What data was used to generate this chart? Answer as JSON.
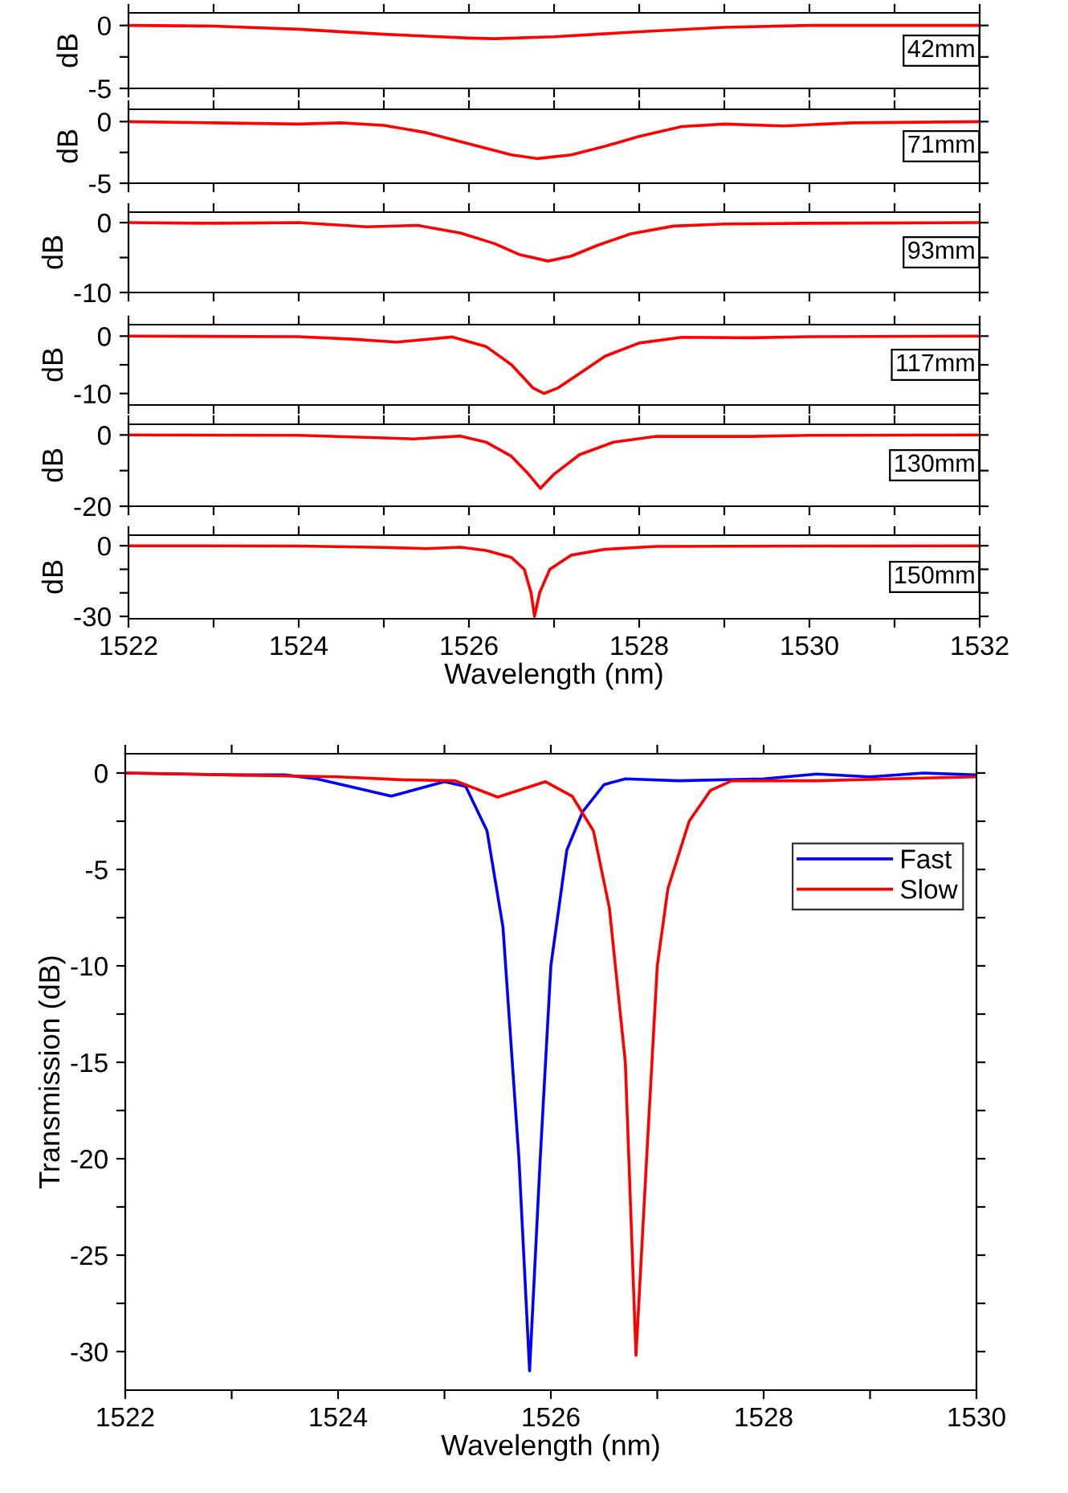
{
  "chart_data": [
    {
      "type": "line",
      "ylabel": "dB",
      "annotations": [
        "42mm"
      ],
      "xlim": [
        1522,
        1532
      ],
      "ylim": [
        -5,
        1
      ],
      "tick_labels": "y",
      "legend": false,
      "xticks": [
        1522,
        {
          "value": 1523,
          "label": null
        },
        1524,
        {
          "value": 1525,
          "label": null
        },
        1526,
        {
          "value": 1527,
          "label": null
        },
        1528,
        {
          "value": 1529,
          "label": null
        },
        1530,
        {
          "value": 1531,
          "label": null
        },
        1532
      ],
      "yticks": [
        0,
        {
          "value": -2.5,
          "label": null
        },
        -5
      ],
      "series": [
        {
          "color": "#ff0000",
          "x": [
            1522,
            1523,
            1524,
            1525,
            1526,
            1526.3,
            1527,
            1528,
            1529,
            1530,
            1531,
            1532
          ],
          "values": [
            0,
            -0.05,
            -0.3,
            -0.7,
            -1.0,
            -1.05,
            -0.9,
            -0.5,
            -0.15,
            0,
            0,
            0
          ]
        }
      ]
    },
    {
      "type": "line",
      "ylabel": "dB",
      "annotations": [
        "71mm"
      ],
      "xlim": [
        1522,
        1532
      ],
      "ylim": [
        -5,
        1
      ],
      "tick_labels": "y",
      "legend": false,
      "xticks": [
        1522,
        {
          "value": 1523,
          "label": null
        },
        1524,
        {
          "value": 1525,
          "label": null
        },
        1526,
        {
          "value": 1527,
          "label": null
        },
        1528,
        {
          "value": 1529,
          "label": null
        },
        1530,
        {
          "value": 1531,
          "label": null
        },
        1532
      ],
      "yticks": [
        0,
        {
          "value": -2.5,
          "label": null
        },
        -5
      ],
      "series": [
        {
          "color": "#ff0000",
          "x": [
            1522,
            1523,
            1524,
            1524.5,
            1525,
            1525.5,
            1526,
            1526.5,
            1526.8,
            1527.2,
            1527.6,
            1528,
            1528.5,
            1529,
            1529.7,
            1530.5,
            1532
          ],
          "values": [
            0,
            -0.1,
            -0.2,
            -0.1,
            -0.3,
            -0.9,
            -1.8,
            -2.7,
            -3.0,
            -2.7,
            -2.0,
            -1.2,
            -0.4,
            -0.2,
            -0.35,
            -0.1,
            0
          ]
        }
      ]
    },
    {
      "type": "line",
      "ylabel": "dB",
      "annotations": [
        "93mm"
      ],
      "xlim": [
        1522,
        1532
      ],
      "ylim": [
        -10,
        1.5
      ],
      "tick_labels": "y",
      "legend": false,
      "xticks": [
        1522,
        {
          "value": 1523,
          "label": null
        },
        1524,
        {
          "value": 1525,
          "label": null
        },
        1526,
        {
          "value": 1527,
          "label": null
        },
        1528,
        {
          "value": 1529,
          "label": null
        },
        1530,
        {
          "value": 1531,
          "label": null
        },
        1532
      ],
      "yticks": [
        0,
        {
          "value": -5,
          "label": null
        },
        -10
      ],
      "series": [
        {
          "color": "#ff0000",
          "x": [
            1522,
            1523,
            1524,
            1524.8,
            1525.4,
            1525.9,
            1526.3,
            1526.6,
            1526.93,
            1527.2,
            1527.5,
            1527.9,
            1528.4,
            1529,
            1530,
            1532
          ],
          "values": [
            0,
            -0.1,
            0,
            -0.6,
            -0.4,
            -1.5,
            -3.0,
            -4.6,
            -5.5,
            -4.8,
            -3.3,
            -1.6,
            -0.5,
            -0.2,
            -0.1,
            0
          ]
        }
      ]
    },
    {
      "type": "line",
      "ylabel": "dB",
      "annotations": [
        "117mm"
      ],
      "xlim": [
        1522,
        1532
      ],
      "ylim": [
        -12,
        2
      ],
      "tick_labels": "y",
      "legend": false,
      "xticks": [
        1522,
        {
          "value": 1523,
          "label": null
        },
        1524,
        {
          "value": 1525,
          "label": null
        },
        1526,
        {
          "value": 1527,
          "label": null
        },
        1528,
        {
          "value": 1529,
          "label": null
        },
        1530,
        {
          "value": 1531,
          "label": null
        },
        1532
      ],
      "yticks": [
        0,
        {
          "value": -5,
          "label": null
        },
        -10
      ],
      "series": [
        {
          "color": "#ff0000",
          "x": [
            1522,
            1524,
            1524.6,
            1525.15,
            1525.8,
            1526.2,
            1526.5,
            1526.75,
            1526.88,
            1527.05,
            1527.3,
            1527.6,
            1528,
            1528.5,
            1529.3,
            1530,
            1532
          ],
          "values": [
            0,
            -0.1,
            -0.5,
            -1.05,
            -0.15,
            -1.8,
            -5,
            -9,
            -10,
            -9,
            -6.5,
            -3.5,
            -1.2,
            -0.2,
            -0.3,
            -0.1,
            0
          ]
        }
      ]
    },
    {
      "type": "line",
      "ylabel": "dB",
      "annotations": [
        "130mm"
      ],
      "xlim": [
        1522,
        1532
      ],
      "ylim": [
        -20,
        3
      ],
      "tick_labels": "y",
      "legend": false,
      "xticks": [
        1522,
        {
          "value": 1523,
          "label": null
        },
        1524,
        {
          "value": 1525,
          "label": null
        },
        1526,
        {
          "value": 1527,
          "label": null
        },
        1528,
        {
          "value": 1529,
          "label": null
        },
        1530,
        {
          "value": 1531,
          "label": null
        },
        1532
      ],
      "yticks": [
        0,
        {
          "value": -10,
          "label": null
        },
        -20
      ],
      "series": [
        {
          "color": "#ff0000",
          "x": [
            1522,
            1524,
            1524.7,
            1525.35,
            1525.9,
            1526.2,
            1526.5,
            1526.7,
            1526.84,
            1527.0,
            1527.3,
            1527.7,
            1528.2,
            1529.3,
            1530,
            1532
          ],
          "values": [
            0,
            -0.1,
            -0.6,
            -1.1,
            -0.3,
            -2,
            -6,
            -11,
            -15,
            -11,
            -5.5,
            -2,
            -0.4,
            -0.4,
            -0.1,
            0
          ]
        }
      ]
    },
    {
      "type": "line",
      "ylabel": "dB",
      "xlabel": "Wavelength (nm)",
      "annotations": [
        "150mm"
      ],
      "xlim": [
        1522,
        1532
      ],
      "ylim": [
        -31,
        4.5
      ],
      "legend": false,
      "xticks": [
        1522,
        {
          "value": 1523,
          "label": null
        },
        1524,
        {
          "value": 1525,
          "label": null
        },
        1526,
        {
          "value": 1527,
          "label": null
        },
        1528,
        {
          "value": 1529,
          "label": null
        },
        1530,
        {
          "value": 1531,
          "label": null
        },
        1532
      ],
      "yticks": [
        0,
        {
          "value": -10,
          "label": null
        },
        {
          "value": -20,
          "label": null
        },
        -30
      ],
      "series": [
        {
          "color": "#ff0000",
          "x": [
            1522,
            1524,
            1525,
            1525.5,
            1525.9,
            1526.2,
            1526.5,
            1526.65,
            1526.73,
            1526.77,
            1526.83,
            1526.95,
            1527.2,
            1527.6,
            1528.2,
            1530,
            1532
          ],
          "values": [
            0,
            -0.1,
            -0.7,
            -1.2,
            -0.6,
            -2,
            -5,
            -10,
            -20,
            -30,
            -20,
            -10,
            -4,
            -1.5,
            -0.3,
            -0.1,
            0
          ]
        }
      ]
    },
    {
      "type": "line",
      "xlabel": "Wavelength (nm)",
      "ylabel": "Transmission (dB)",
      "xlim": [
        1522,
        1530
      ],
      "ylim": [
        -32,
        1
      ],
      "legend": "top right",
      "xticks": [
        1522,
        {
          "value": 1523,
          "label": null
        },
        1524,
        {
          "value": 1525,
          "label": null
        },
        1526,
        {
          "value": 1527,
          "label": null
        },
        1528,
        {
          "value": 1529,
          "label": null
        },
        1530
      ],
      "yticks": [
        0,
        {
          "value": -2.5,
          "label": null
        },
        -5,
        {
          "value": -7.5,
          "label": null
        },
        -10,
        {
          "value": -12.5,
          "label": null
        },
        -15,
        {
          "value": -17.5,
          "label": null
        },
        -20,
        {
          "value": -22.5,
          "label": null
        },
        -25,
        {
          "value": -27.5,
          "label": null
        },
        -30
      ],
      "series": [
        {
          "name": "Fast",
          "color": "#0000ff",
          "x": [
            1522,
            1523,
            1523.5,
            1523.8,
            1524.5,
            1525,
            1525.2,
            1525.4,
            1525.55,
            1525.7,
            1525.8,
            1525.9,
            1526.0,
            1526.15,
            1526.3,
            1526.5,
            1526.7,
            1527.2,
            1528,
            1528.5,
            1529,
            1529.5,
            1530
          ],
          "values": [
            0,
            -0.1,
            -0.1,
            -0.3,
            -1.2,
            -0.45,
            -0.7,
            -3,
            -8,
            -20,
            -31,
            -20,
            -10,
            -4,
            -2,
            -0.6,
            -0.3,
            -0.4,
            -0.3,
            -0.05,
            -0.2,
            0,
            -0.1
          ]
        },
        {
          "name": "Slow",
          "color": "#ff0000",
          "x": [
            1522,
            1523,
            1524,
            1524.6,
            1525.1,
            1525.5,
            1525.95,
            1526.2,
            1526.4,
            1526.55,
            1526.7,
            1526.8,
            1526.9,
            1527.0,
            1527.1,
            1527.3,
            1527.5,
            1527.7,
            1528.5,
            1529.2,
            1530
          ],
          "values": [
            0,
            -0.1,
            -0.2,
            -0.35,
            -0.4,
            -1.25,
            -0.45,
            -1.2,
            -3,
            -7,
            -15,
            -30.2,
            -20,
            -10,
            -6,
            -2.5,
            -0.9,
            -0.4,
            -0.4,
            -0.3,
            -0.2
          ]
        }
      ]
    }
  ]
}
